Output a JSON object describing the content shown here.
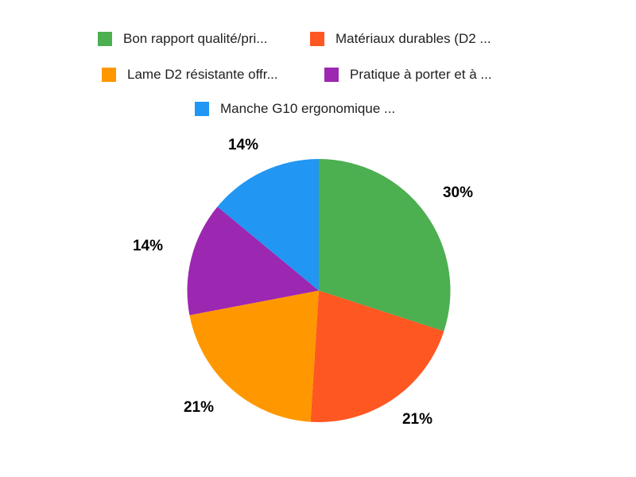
{
  "chart_data": {
    "type": "pie",
    "title": "",
    "legend_position": "top",
    "start_angle_deg": 0,
    "direction": "clockwise",
    "total": 100,
    "background": "#ffffff",
    "legend_text_color": "#212121",
    "value_label_color": "#000000",
    "slices": [
      {
        "label": "Bon rapport qualité/pri...",
        "value": 30,
        "value_label": "30%",
        "color": "#4caf50"
      },
      {
        "label": "Matériaux durables (D2 ...",
        "value": 21,
        "value_label": "21%",
        "color": "#ff5722"
      },
      {
        "label": "Lame D2 résistante offr...",
        "value": 21,
        "value_label": "21%",
        "color": "#ff9800"
      },
      {
        "label": "Pratique à porter et à ...",
        "value": 14,
        "value_label": "14%",
        "color": "#9c27b0"
      },
      {
        "label": "Manche G10 ergonomique ...",
        "value": 14,
        "value_label": "14%",
        "color": "#2196f3"
      }
    ]
  }
}
